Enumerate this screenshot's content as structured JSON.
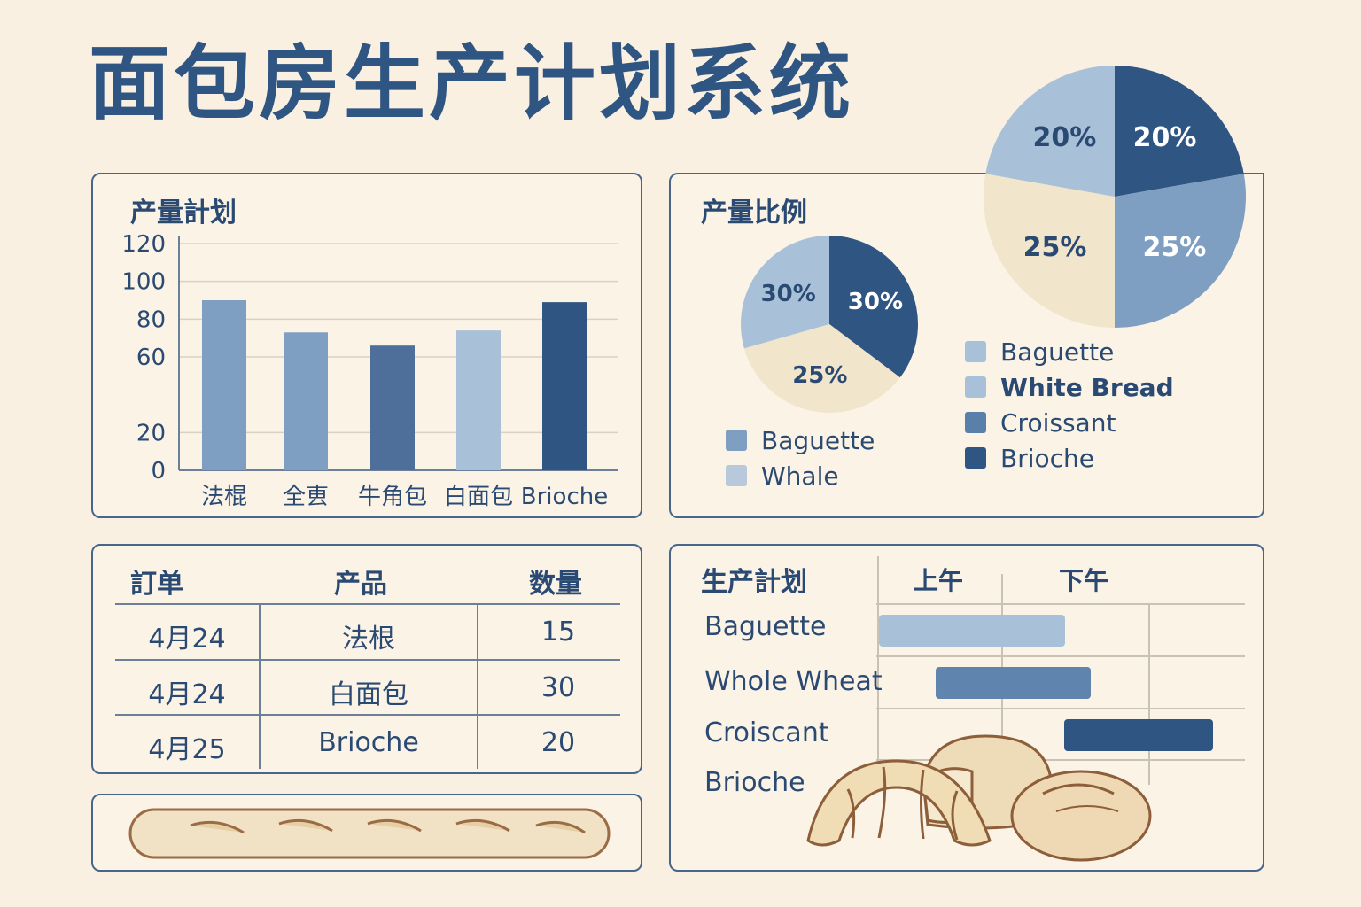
{
  "title": "面包房生产计划系统",
  "colors": {
    "dark": "#2f5583",
    "mid": "#5a7fa9",
    "light": "#8eaccc",
    "pale": "#a9c1d8",
    "cream": "#f1e5cb"
  },
  "production_plan": {
    "title": "产量計划",
    "chart_data": {
      "type": "bar",
      "title": "产量計划",
      "categories": [
        "法棍",
        "全叀",
        "牛角包",
        "白面包",
        "Brioche"
      ],
      "values": [
        90,
        73,
        66,
        74,
        89
      ],
      "yticks": [
        "0",
        "20",
        "60",
        "80",
        "100",
        "120"
      ],
      "ylim": [
        0,
        120
      ],
      "grid": true
    }
  },
  "production_ratio": {
    "title": "产量比例",
    "chart_data": [
      {
        "type": "pie",
        "labels": [
          "30%",
          "30%",
          "25%"
        ],
        "values": [
          30,
          30,
          25
        ]
      },
      {
        "type": "pie",
        "labels": [
          "20%",
          "25%",
          "25%",
          "20%"
        ],
        "values": [
          20,
          25,
          25,
          20
        ]
      }
    ],
    "small_legend": [
      {
        "label": "Baguette",
        "color": "#7f9fc2"
      },
      {
        "label": "Whale",
        "color": "#b7c9da"
      }
    ],
    "large_legend": [
      {
        "label": "Baguette",
        "color": "#a9c1d8"
      },
      {
        "label": "White Bread",
        "color": "#a9c1d8"
      },
      {
        "label": "Croissant",
        "color": "#5a7fa9"
      },
      {
        "label": "Brioche",
        "color": "#2f5583"
      }
    ]
  },
  "orders": {
    "headers": [
      "訂单",
      "产品",
      "数量"
    ],
    "rows": [
      [
        "4月24",
        "法根",
        "15"
      ],
      [
        "4月24",
        "白面包",
        "30"
      ],
      [
        "4月25",
        "Brioche",
        "20"
      ]
    ]
  },
  "schedule": {
    "title": "生产計划",
    "columns": [
      "上午",
      "下午"
    ],
    "items": [
      "Baguette",
      "Whole Wheat",
      "Croiscant",
      "Brioche"
    ]
  }
}
